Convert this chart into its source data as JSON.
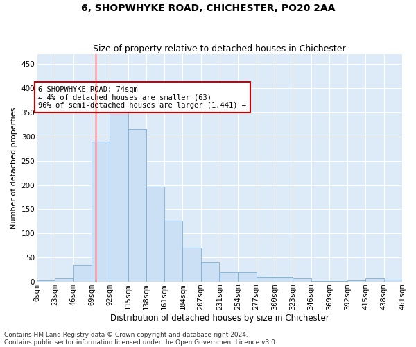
{
  "title": "6, SHOPWHYKE ROAD, CHICHESTER, PO20 2AA",
  "subtitle": "Size of property relative to detached houses in Chichester",
  "xlabel": "Distribution of detached houses by size in Chichester",
  "ylabel": "Number of detached properties",
  "bar_color": "#cce0f5",
  "bar_edge_color": "#7bafd4",
  "background_color": "#ddeaf7",
  "grid_color": "#ffffff",
  "fig_bg_color": "#ffffff",
  "annotation_box_color": "#cc0000",
  "annotation_text": "6 SHOPWHYKE ROAD: 74sqm\n← 4% of detached houses are smaller (63)\n96% of semi-detached houses are larger (1,441) →",
  "vline_x": 74,
  "vline_color": "#cc0000",
  "bin_edges": [
    0,
    23,
    46,
    69,
    92,
    115,
    138,
    161,
    184,
    207,
    231,
    254,
    277,
    300,
    323,
    346,
    369,
    392,
    415,
    438,
    461
  ],
  "bar_heights": [
    3,
    7,
    35,
    290,
    360,
    315,
    197,
    127,
    70,
    40,
    20,
    20,
    10,
    10,
    7,
    2,
    2,
    3,
    7,
    5
  ],
  "tick_labels": [
    "0sqm",
    "23sqm",
    "46sqm",
    "69sqm",
    "92sqm",
    "115sqm",
    "138sqm",
    "161sqm",
    "184sqm",
    "207sqm",
    "231sqm",
    "254sqm",
    "277sqm",
    "300sqm",
    "323sqm",
    "346sqm",
    "369sqm",
    "392sqm",
    "415sqm",
    "438sqm",
    "461sqm"
  ],
  "ylim": [
    0,
    470
  ],
  "yticks": [
    0,
    50,
    100,
    150,
    200,
    250,
    300,
    350,
    400,
    450
  ],
  "footnote": "Contains HM Land Registry data © Crown copyright and database right 2024.\nContains public sector information licensed under the Open Government Licence v3.0.",
  "title_fontsize": 10,
  "subtitle_fontsize": 9,
  "xlabel_fontsize": 8.5,
  "ylabel_fontsize": 8,
  "tick_fontsize": 7.5,
  "annotation_fontsize": 7.5,
  "footnote_fontsize": 6.5
}
